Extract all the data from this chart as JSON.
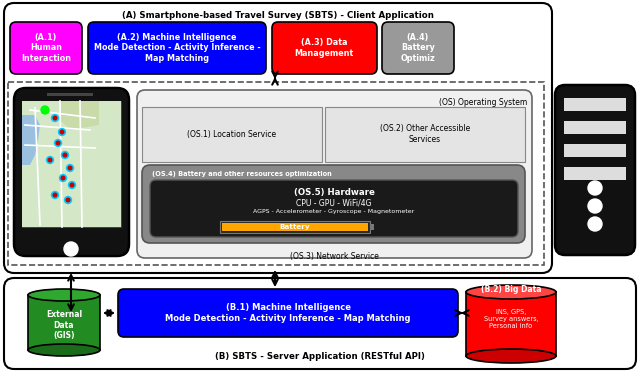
{
  "title_A": "(A) Smartphone-based Travel Survey (SBTS) - Client Application",
  "title_B": "(B) SBTS - Server Application (RESTful API)",
  "box_A1_label": "(A.1)\nHuman\nInteraction",
  "box_A2_label": "(A.2) Machine Intelligence\nMode Detection - Activity Inference -\nMap Matching",
  "box_A3_label": "(A.3) Data\nManagement",
  "box_A4_label": "(A.4)\nBattery\nOptimiz",
  "box_OS_label": "(OS) Operating System",
  "box_OS1_label": "(OS.1) Location Service",
  "box_OS2_label": "(OS.2) Other Accessible\nServices",
  "box_OS3_label": "(OS.3) Network Service",
  "box_OS4_label": "(OS.4) Battery and other resources optimization",
  "box_OS5_line1": "(OS.5) Hardware",
  "box_OS5_line2": "CPU - GPU - WiFi/4G",
  "box_OS5_line3": "AGPS - Accelerometer - Gyroscope - Magnetometer",
  "box_battery_label": "Battery",
  "box_B1_label": "(B.1) Machine Intelligence\nMode Detection - Activity Inference - Map Matching",
  "box_B2_label": "(B.2) Big Data",
  "box_B2_sub": "INS, GPS,\nSurvey answers,\nPersonal info",
  "box_ext_label": "External\nData\n(GIS)",
  "color_A1": "#FF00FF",
  "color_A2": "#0000FF",
  "color_A3": "#FF0000",
  "color_A4": "#999999",
  "color_B1": "#0000FF",
  "color_B2": "#FF0000",
  "color_ext": "#228B22",
  "color_OS4_bg": "#888888",
  "color_OS5_bg": "#1a1a1a",
  "color_battery_bg": "#FFA500",
  "color_phone_body": "#111111",
  "color_server_body": "#111111"
}
